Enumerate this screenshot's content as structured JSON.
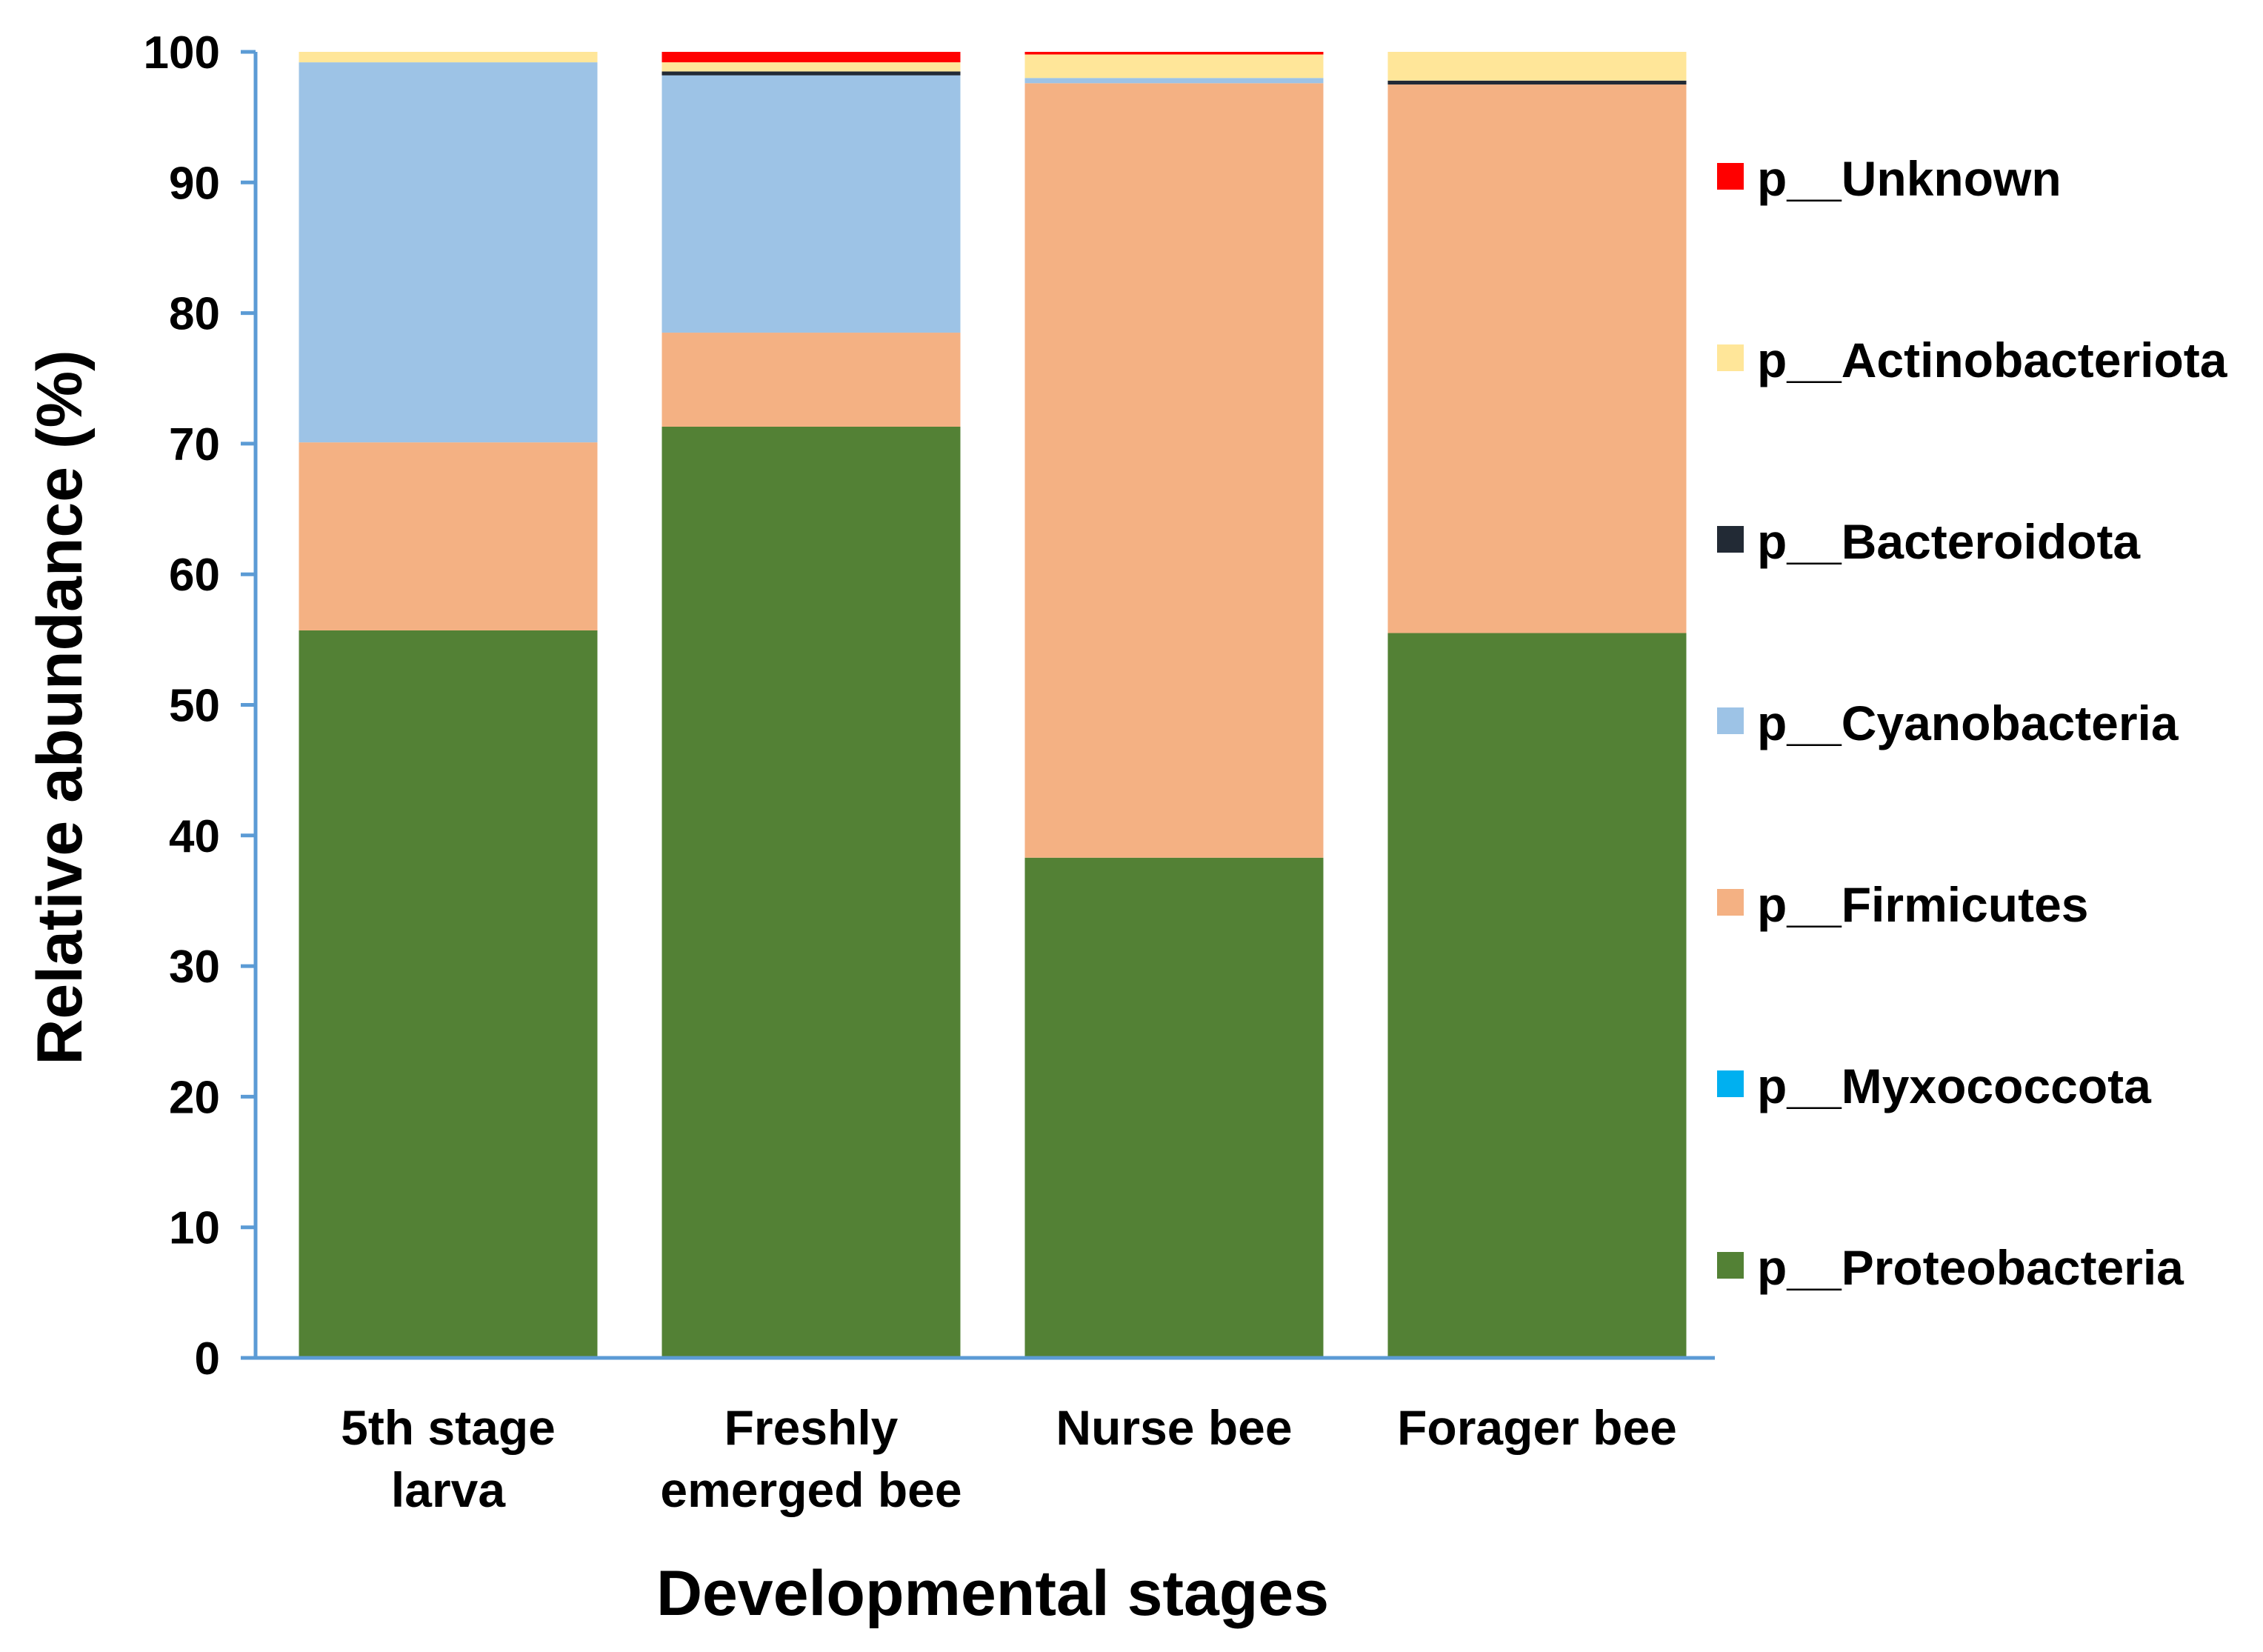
{
  "chart_data": {
    "type": "bar",
    "stacked": true,
    "title": "",
    "xlabel": "Developmental stages",
    "ylabel": "Relative abundance (%)",
    "ylim": [
      0,
      100
    ],
    "yticks": [
      "0",
      "10",
      "20",
      "30",
      "40",
      "50",
      "60",
      "70",
      "80",
      "90",
      "100"
    ],
    "grid": false,
    "legend_position": "right",
    "categories": [
      [
        "5th stage",
        "larva"
      ],
      [
        "Freshly",
        "emerged bee"
      ],
      [
        "Nurse bee"
      ],
      [
        "Forager bee"
      ]
    ],
    "series": [
      {
        "name": "p__Proteobacteria",
        "color": "#538135",
        "values": [
          55.7,
          71.3,
          38.3,
          55.5
        ]
      },
      {
        "name": "p__Myxococcota",
        "color": "#00b0f0",
        "values": [
          0.0,
          0.0,
          0.0,
          0.0
        ]
      },
      {
        "name": "p__Firmicutes",
        "color": "#f4b183",
        "values": [
          14.4,
          7.2,
          59.3,
          42.0
        ]
      },
      {
        "name": "p__Cyanobacteria",
        "color": "#9dc3e6",
        "values": [
          29.1,
          19.7,
          0.4,
          0.0
        ]
      },
      {
        "name": "p__Bacteroidota",
        "color": "#222a35",
        "values": [
          0.0,
          0.3,
          0.0,
          0.3
        ]
      },
      {
        "name": "p__Actinobacteriota",
        "color": "#ffe699",
        "values": [
          0.8,
          0.7,
          1.8,
          2.2
        ]
      },
      {
        "name": "p__Unknown",
        "color": "#ff0000",
        "values": [
          0.0,
          0.8,
          0.2,
          0.0
        ]
      }
    ],
    "axis_color": "#5b9bd5",
    "text_color": "#000000"
  }
}
